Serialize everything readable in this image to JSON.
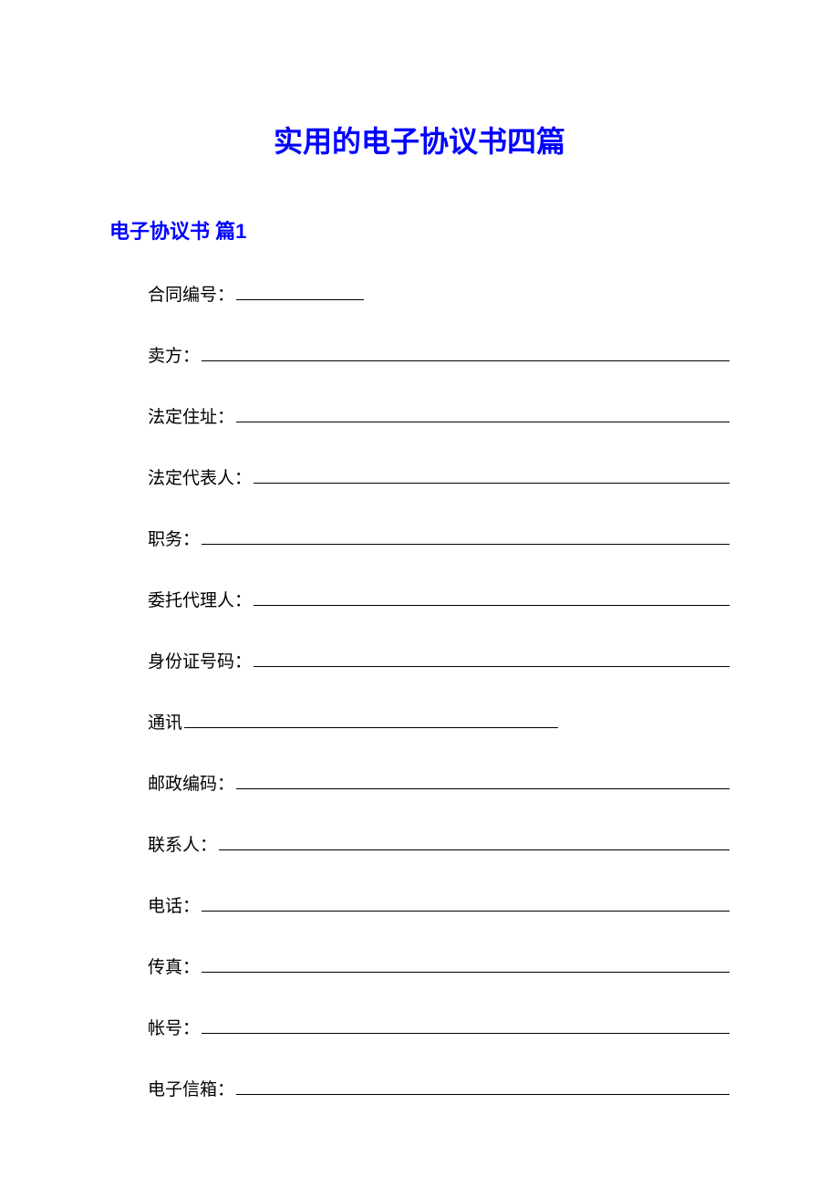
{
  "document": {
    "title": "实用的电子协议书四篇",
    "subtitle": "电子协议书 篇1",
    "title_color": "#0000ff",
    "subtitle_color": "#0000ff",
    "text_color": "#000000",
    "background_color": "#ffffff",
    "title_fontsize": 32,
    "subtitle_fontsize": 22,
    "body_fontsize": 19,
    "fields": [
      {
        "label": "合同编号：",
        "line_style": "short"
      },
      {
        "label": "卖方：",
        "line_style": "full"
      },
      {
        "label": "法定住址：",
        "line_style": "full"
      },
      {
        "label": "法定代表人：",
        "line_style": "full"
      },
      {
        "label": "职务：",
        "line_style": "full"
      },
      {
        "label": "委托代理人：",
        "line_style": "full"
      },
      {
        "label": "身份证号码：",
        "line_style": "full"
      },
      {
        "label": "通讯",
        "line_style": "mid"
      },
      {
        "label": "邮政编码：",
        "line_style": "full"
      },
      {
        "label": "联系人：",
        "line_style": "full"
      },
      {
        "label": "电话：",
        "line_style": "full"
      },
      {
        "label": "传真：",
        "line_style": "full"
      },
      {
        "label": "帐号：",
        "line_style": "full"
      },
      {
        "label": "电子信箱：",
        "line_style": "full"
      }
    ]
  }
}
